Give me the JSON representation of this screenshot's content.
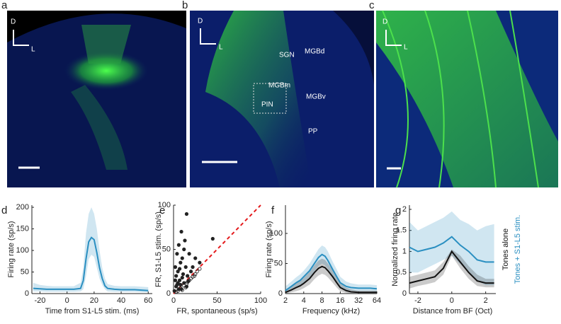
{
  "images": [
    {
      "panel": "a",
      "labels": [
        "D",
        "L"
      ]
    },
    {
      "panel": "b",
      "labels": [
        "D",
        "L",
        "SGN",
        "MGBd",
        "MGBm",
        "PIN",
        "MGBv",
        "PP"
      ]
    },
    {
      "panel": "c",
      "labels": [
        "D",
        "L"
      ]
    }
  ],
  "chart_data": [
    {
      "type": "line",
      "panel": "d",
      "xlabel": "Time from S1-L5 stim. (ms)",
      "ylabel": "Firing rate (sp/s)",
      "xlim": [
        -26,
        63
      ],
      "xticks": [
        -20,
        0,
        20,
        40,
        60
      ],
      "ylim": [
        0,
        205
      ],
      "yticks": [
        0,
        50,
        100,
        150,
        200
      ],
      "x": [
        -25,
        -20,
        -15,
        -10,
        -5,
        0,
        5,
        10,
        12,
        14,
        16,
        18,
        20,
        22,
        24,
        26,
        28,
        30,
        35,
        40,
        45,
        50,
        55,
        60
      ],
      "series": [
        {
          "color": "#2a8fc1",
          "values": [
            12,
            11,
            10,
            10,
            10,
            10,
            10,
            12,
            30,
            80,
            120,
            130,
            125,
            95,
            60,
            35,
            18,
            12,
            10,
            9,
            9,
            9,
            8,
            7
          ],
          "upper": [
            25,
            20,
            18,
            17,
            17,
            17,
            17,
            25,
            60,
            140,
            185,
            200,
            185,
            150,
            100,
            60,
            35,
            22,
            18,
            17,
            17,
            17,
            16,
            15
          ],
          "lower": [
            5,
            5,
            4,
            4,
            4,
            4,
            4,
            5,
            10,
            40,
            80,
            90,
            85,
            60,
            35,
            20,
            10,
            5,
            4,
            4,
            4,
            4,
            3,
            3
          ]
        }
      ]
    },
    {
      "type": "scatter",
      "panel": "e",
      "xlabel": "FR, spontaneous (sp/s)",
      "ylabel": "FR, S1-L5 stim. (sp/s)",
      "xlim": [
        0,
        100
      ],
      "xticks": [
        0,
        50,
        100
      ],
      "ylim": [
        0,
        100
      ],
      "yticks": [
        0,
        50,
        100
      ],
      "series": [
        {
          "color": "#222222",
          "filled": true,
          "x": [
            2,
            3,
            4,
            5,
            6,
            7,
            8,
            9,
            10,
            12,
            14,
            15,
            16,
            18,
            20,
            3,
            5,
            6,
            8,
            10,
            12,
            15,
            22,
            25,
            30,
            45,
            1,
            2,
            4,
            7,
            11,
            13,
            9,
            17
          ],
          "values": [
            30,
            20,
            45,
            25,
            55,
            15,
            35,
            70,
            40,
            50,
            30,
            90,
            20,
            45,
            25,
            8,
            12,
            5,
            10,
            18,
            12,
            8,
            30,
            40,
            35,
            62,
            3,
            15,
            10,
            28,
            22,
            60,
            5,
            14
          ]
        },
        {
          "color": "#222222",
          "filled": false,
          "x": [
            5,
            8,
            12,
            15,
            18,
            20,
            22,
            25,
            27,
            30,
            10,
            14,
            16,
            3,
            24
          ],
          "values": [
            3,
            6,
            9,
            11,
            15,
            17,
            19,
            22,
            25,
            28,
            4,
            7,
            13,
            2,
            20
          ]
        }
      ],
      "reference_line": {
        "color": "#e41a1c",
        "x": [
          0,
          100
        ],
        "values": [
          0,
          100
        ]
      }
    },
    {
      "type": "line",
      "panel": "f",
      "xlabel": "Frequency (kHz)",
      "ylabel": "Firing rate (sp/s)",
      "xscale": "log",
      "xlim": [
        2,
        64
      ],
      "xticks": [
        2,
        4,
        8,
        16,
        32,
        64
      ],
      "ylim": [
        0,
        147
      ],
      "yticks": [
        0,
        50,
        100
      ],
      "x": [
        2,
        2.5,
        3,
        3.5,
        4,
        5,
        6,
        7,
        8,
        9,
        10,
        12,
        14,
        16,
        20,
        24,
        32,
        40,
        50,
        64
      ],
      "series": [
        {
          "color": "#2a8fc1",
          "values": [
            5,
            12,
            18,
            22,
            28,
            38,
            50,
            60,
            65,
            62,
            55,
            40,
            28,
            18,
            12,
            10,
            9,
            9,
            9,
            8
          ],
          "upper": [
            12,
            20,
            27,
            32,
            38,
            50,
            63,
            74,
            80,
            77,
            70,
            53,
            40,
            28,
            20,
            17,
            15,
            15,
            15,
            14
          ],
          "lower": [
            1,
            5,
            10,
            13,
            18,
            27,
            37,
            46,
            50,
            47,
            41,
            28,
            17,
            10,
            6,
            5,
            4,
            4,
            4,
            3
          ]
        },
        {
          "color": "#111111",
          "values": [
            2,
            6,
            10,
            13,
            17,
            25,
            35,
            42,
            45,
            43,
            38,
            28,
            18,
            10,
            5,
            3,
            2,
            2,
            2,
            2
          ],
          "upper": [
            6,
            12,
            17,
            21,
            26,
            36,
            47,
            55,
            58,
            56,
            50,
            39,
            27,
            17,
            10,
            7,
            5,
            5,
            5,
            5
          ],
          "lower": [
            0,
            2,
            4,
            6,
            9,
            15,
            24,
            30,
            33,
            31,
            27,
            18,
            10,
            4,
            1,
            0,
            0,
            0,
            0,
            0
          ]
        }
      ]
    },
    {
      "type": "line",
      "panel": "g",
      "xlabel": "Distance from BF (Oct)",
      "ylabel": "Normalized firing rate",
      "xlim": [
        -2.5,
        2.6
      ],
      "xticks": [
        -2,
        0,
        2
      ],
      "ylim": [
        0,
        2.1
      ],
      "yticks": [
        0,
        0.5,
        1,
        1.5,
        2
      ],
      "legend": [
        "Tones alone",
        "Tones + S1-L5 stim."
      ],
      "x": [
        -2.5,
        -2,
        -1.5,
        -1,
        -0.5,
        0,
        0.5,
        1,
        1.5,
        2,
        2.5
      ],
      "series": [
        {
          "name": "Tones + S1-L5 stim.",
          "color": "#2a8fc1",
          "values": [
            1.1,
            1.0,
            1.05,
            1.1,
            1.2,
            1.35,
            1.15,
            1.0,
            0.8,
            0.75,
            0.75
          ],
          "upper": [
            1.7,
            1.5,
            1.6,
            1.7,
            1.8,
            1.95,
            1.75,
            1.65,
            1.5,
            1.6,
            1.65
          ],
          "lower": [
            0.5,
            0.5,
            0.6,
            0.7,
            0.8,
            0.9,
            0.7,
            0.5,
            0.3,
            0.2,
            0.2
          ]
        },
        {
          "name": "Tones alone",
          "color": "#111111",
          "values": [
            0.25,
            0.3,
            0.35,
            0.4,
            0.6,
            1.0,
            0.75,
            0.5,
            0.3,
            0.25,
            0.25
          ],
          "upper": [
            0.4,
            0.45,
            0.5,
            0.55,
            0.75,
            1.05,
            0.9,
            0.65,
            0.45,
            0.35,
            0.35
          ],
          "lower": [
            0.12,
            0.18,
            0.22,
            0.27,
            0.45,
            0.9,
            0.6,
            0.35,
            0.18,
            0.15,
            0.15
          ]
        }
      ]
    }
  ]
}
